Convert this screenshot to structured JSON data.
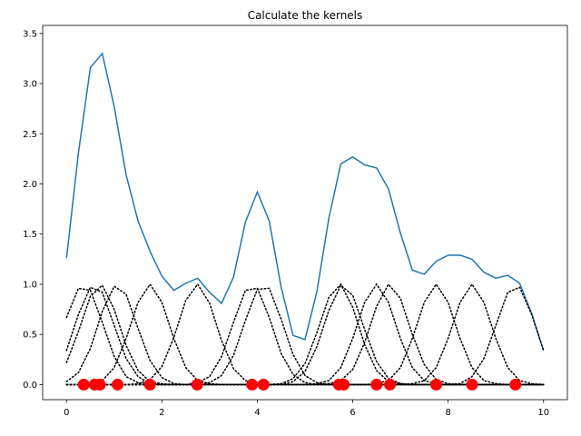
{
  "chart_data": {
    "type": "line",
    "title": "Calculate the kernels",
    "x": [
      0,
      0.25,
      0.5,
      0.75,
      1,
      1.25,
      1.5,
      1.75,
      2,
      2.25,
      2.5,
      2.75,
      3,
      3.25,
      3.5,
      3.75,
      4,
      4.25,
      4.5,
      4.75,
      5,
      5.25,
      5.5,
      5.75,
      6,
      6.25,
      6.5,
      6.75,
      7,
      7.25,
      7.5,
      7.75,
      8,
      8.25,
      8.5,
      8.75,
      9,
      9.25,
      9.5,
      9.75,
      10
    ],
    "series": [
      {
        "color": "#1f77b4",
        "style": "solid",
        "values": [
          1.26,
          2.31,
          3.16,
          3.3,
          2.77,
          2.09,
          1.63,
          1.33,
          1.08,
          0.94,
          1.01,
          1.06,
          0.92,
          0.81,
          1.07,
          1.62,
          1.92,
          1.63,
          0.97,
          0.49,
          0.45,
          0.93,
          1.66,
          2.2,
          2.27,
          2.19,
          2.16,
          1.95,
          1.51,
          1.14,
          1.1,
          1.23,
          1.29,
          1.29,
          1.25,
          1.12,
          1.06,
          1.09,
          1.01,
          0.71,
          0.34
        ]
      },
      {
        "color": "#000000",
        "style": "dotted",
        "values": [
          0.67,
          0.96,
          0.94,
          0.62,
          0.28,
          0.08,
          0.02,
          0,
          0,
          0,
          0,
          0,
          0,
          0,
          0,
          0,
          0,
          0,
          0,
          0,
          0,
          0,
          0,
          0,
          0,
          0,
          0,
          0,
          0,
          0,
          0,
          0,
          0,
          0,
          0,
          0,
          0,
          0,
          0,
          0,
          0
        ]
      },
      {
        "color": "#000000",
        "style": "dotted",
        "values": [
          0.34,
          0.7,
          0.97,
          0.92,
          0.59,
          0.26,
          0.08,
          0.01,
          0,
          0,
          0,
          0,
          0,
          0,
          0,
          0,
          0,
          0,
          0,
          0,
          0,
          0,
          0,
          0,
          0,
          0,
          0,
          0,
          0,
          0,
          0,
          0,
          0,
          0,
          0,
          0,
          0,
          0,
          0,
          0,
          0
        ]
      },
      {
        "color": "#000000",
        "style": "dotted",
        "values": [
          0.22,
          0.53,
          0.88,
          0.99,
          0.75,
          0.39,
          0.14,
          0.03,
          0.01,
          0,
          0,
          0,
          0,
          0,
          0,
          0,
          0,
          0,
          0,
          0,
          0,
          0,
          0,
          0,
          0,
          0,
          0,
          0,
          0,
          0,
          0,
          0,
          0,
          0,
          0,
          0,
          0,
          0,
          0,
          0,
          0
        ]
      },
      {
        "color": "#000000",
        "style": "dotted",
        "values": [
          0.03,
          0.12,
          0.36,
          0.73,
          0.98,
          0.9,
          0.56,
          0.24,
          0.07,
          0.01,
          0,
          0,
          0,
          0,
          0,
          0,
          0,
          0,
          0,
          0,
          0,
          0,
          0,
          0,
          0,
          0,
          0,
          0,
          0,
          0,
          0,
          0,
          0,
          0,
          0,
          0,
          0,
          0,
          0,
          0,
          0
        ]
      },
      {
        "color": "#000000",
        "style": "dotted",
        "values": [
          0,
          0,
          0.01,
          0.04,
          0.17,
          0.46,
          0.82,
          1,
          0.82,
          0.46,
          0.17,
          0.04,
          0.01,
          0,
          0,
          0,
          0,
          0,
          0,
          0,
          0,
          0,
          0,
          0,
          0,
          0,
          0,
          0,
          0,
          0,
          0,
          0,
          0,
          0,
          0,
          0,
          0,
          0,
          0,
          0,
          0
        ]
      },
      {
        "color": "#000000",
        "style": "dotted",
        "values": [
          0,
          0,
          0,
          0,
          0,
          0,
          0.01,
          0.05,
          0.18,
          0.47,
          0.84,
          1,
          0.81,
          0.44,
          0.16,
          0.04,
          0.01,
          0,
          0,
          0,
          0,
          0,
          0,
          0,
          0,
          0,
          0,
          0,
          0,
          0,
          0,
          0,
          0,
          0,
          0,
          0,
          0,
          0,
          0,
          0,
          0
        ]
      },
      {
        "color": "#000000",
        "style": "dotted",
        "values": [
          0,
          0,
          0,
          0,
          0,
          0,
          0,
          0,
          0,
          0,
          0,
          0.02,
          0.08,
          0.28,
          0.62,
          0.94,
          0.96,
          0.67,
          0.31,
          0.1,
          0.02,
          0,
          0,
          0,
          0,
          0,
          0,
          0,
          0,
          0,
          0,
          0,
          0,
          0,
          0,
          0,
          0,
          0,
          0,
          0,
          0
        ]
      },
      {
        "color": "#000000",
        "style": "dotted",
        "values": [
          0,
          0,
          0,
          0,
          0,
          0,
          0,
          0,
          0,
          0,
          0,
          0,
          0.02,
          0.09,
          0.29,
          0.64,
          0.95,
          0.96,
          0.65,
          0.3,
          0.09,
          0.02,
          0,
          0,
          0,
          0,
          0,
          0,
          0,
          0,
          0,
          0,
          0,
          0,
          0,
          0,
          0,
          0,
          0,
          0,
          0
        ]
      },
      {
        "color": "#000000",
        "style": "dotted",
        "values": [
          0,
          0,
          0,
          0,
          0,
          0,
          0,
          0,
          0,
          0,
          0,
          0,
          0,
          0,
          0,
          0,
          0,
          0,
          0.01,
          0.06,
          0.21,
          0.52,
          0.87,
          1,
          0.77,
          0.4,
          0.14,
          0.03,
          0.01,
          0,
          0,
          0,
          0,
          0,
          0,
          0,
          0,
          0,
          0,
          0,
          0
        ]
      },
      {
        "color": "#000000",
        "style": "dotted",
        "values": [
          0,
          0,
          0,
          0,
          0,
          0,
          0,
          0,
          0,
          0,
          0,
          0,
          0,
          0,
          0,
          0,
          0,
          0,
          0,
          0.03,
          0.13,
          0.38,
          0.74,
          0.99,
          0.89,
          0.55,
          0.23,
          0.06,
          0.01,
          0,
          0,
          0,
          0,
          0,
          0,
          0,
          0,
          0,
          0,
          0,
          0
        ]
      },
      {
        "color": "#000000",
        "style": "dotted",
        "values": [
          0,
          0,
          0,
          0,
          0,
          0,
          0,
          0,
          0,
          0,
          0,
          0,
          0,
          0,
          0,
          0,
          0,
          0,
          0,
          0,
          0,
          0.01,
          0.04,
          0.17,
          0.46,
          0.82,
          1,
          0.82,
          0.46,
          0.17,
          0.04,
          0.01,
          0,
          0,
          0,
          0,
          0,
          0,
          0,
          0,
          0
        ]
      },
      {
        "color": "#000000",
        "style": "dotted",
        "values": [
          0,
          0,
          0,
          0,
          0,
          0,
          0,
          0,
          0,
          0,
          0,
          0,
          0,
          0,
          0,
          0,
          0,
          0,
          0,
          0,
          0,
          0,
          0.01,
          0.04,
          0.15,
          0.42,
          0.78,
          1,
          0.86,
          0.5,
          0.2,
          0.05,
          0.01,
          0,
          0,
          0,
          0,
          0,
          0,
          0,
          0
        ]
      },
      {
        "color": "#000000",
        "style": "dotted",
        "values": [
          0,
          0,
          0,
          0,
          0,
          0,
          0,
          0,
          0,
          0,
          0,
          0,
          0,
          0,
          0,
          0,
          0,
          0,
          0,
          0,
          0,
          0,
          0,
          0,
          0,
          0,
          0.01,
          0.04,
          0.17,
          0.46,
          0.82,
          1,
          0.82,
          0.46,
          0.17,
          0.04,
          0.01,
          0,
          0,
          0,
          0
        ]
      },
      {
        "color": "#000000",
        "style": "dotted",
        "values": [
          0,
          0,
          0,
          0,
          0,
          0,
          0,
          0,
          0,
          0,
          0,
          0,
          0,
          0,
          0,
          0,
          0,
          0,
          0,
          0,
          0,
          0,
          0,
          0,
          0,
          0,
          0,
          0,
          0,
          0.01,
          0.04,
          0.17,
          0.46,
          0.82,
          1,
          0.82,
          0.46,
          0.17,
          0.04,
          0.01,
          0
        ]
      },
      {
        "color": "#000000",
        "style": "dotted",
        "values": [
          0,
          0,
          0,
          0,
          0,
          0,
          0,
          0,
          0,
          0,
          0,
          0,
          0,
          0,
          0,
          0,
          0,
          0,
          0,
          0,
          0,
          0,
          0,
          0,
          0,
          0,
          0,
          0,
          0,
          0,
          0,
          0,
          0,
          0.01,
          0.08,
          0.26,
          0.59,
          0.92,
          0.97,
          0.7,
          0.34
        ]
      }
    ],
    "points": {
      "color": "#ff0000",
      "x": [
        0.36,
        0.59,
        0.7,
        1.07,
        1.75,
        2.74,
        3.89,
        4.13,
        5.71,
        5.81,
        6.5,
        6.78,
        7.75,
        8.5,
        9.41
      ],
      "values": [
        0,
        0,
        0,
        0,
        0,
        0,
        0,
        0,
        0,
        0,
        0,
        0,
        0,
        0,
        0
      ]
    },
    "xlim": [
      -0.5,
      10.5
    ],
    "ylim": [
      -0.15,
      3.58
    ],
    "xticks": [
      0,
      2,
      4,
      6,
      8,
      10
    ],
    "yticks": [
      {
        "value": 0,
        "label": "0.0"
      },
      {
        "value": 0.5,
        "label": "0.5"
      },
      {
        "value": 1,
        "label": "1.0"
      },
      {
        "value": 1.5,
        "label": "1.5"
      },
      {
        "value": 2,
        "label": "2.0"
      },
      {
        "value": 2.5,
        "label": "2.5"
      },
      {
        "value": 3,
        "label": "3.0"
      },
      {
        "value": 3.5,
        "label": "3.5"
      }
    ],
    "grid": false
  }
}
